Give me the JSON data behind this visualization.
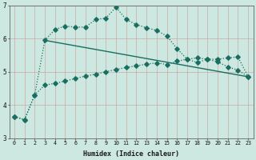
{
  "xlabel": "Humidex (Indice chaleur)",
  "bg_color": "#cce8e0",
  "grid_color": "#b0c8c0",
  "line_color": "#1a6e60",
  "xlim": [
    -0.5,
    23.5
  ],
  "ylim": [
    3,
    7
  ],
  "yticks": [
    3,
    4,
    5,
    6,
    7
  ],
  "xticks": [
    0,
    1,
    2,
    3,
    4,
    5,
    6,
    7,
    8,
    9,
    10,
    11,
    12,
    13,
    14,
    15,
    16,
    17,
    18,
    19,
    20,
    21,
    22,
    23
  ],
  "line1_x": [
    0,
    1,
    2,
    3,
    4,
    5,
    6,
    7,
    8,
    9,
    10,
    11,
    12,
    13,
    14,
    15,
    16,
    17,
    18,
    19,
    20,
    21,
    22,
    23
  ],
  "line1_y": [
    3.65,
    3.55,
    4.3,
    5.95,
    6.28,
    6.38,
    6.35,
    6.35,
    6.58,
    6.62,
    6.95,
    6.58,
    6.43,
    6.33,
    6.25,
    6.08,
    5.7,
    5.38,
    5.28,
    5.38,
    5.38,
    5.42,
    5.45,
    4.85
  ],
  "line2_x": [
    0,
    1,
    2,
    3,
    4,
    5,
    6,
    7,
    8,
    9,
    10,
    11,
    12,
    13,
    14,
    15,
    16,
    17,
    18,
    19,
    20,
    21,
    22,
    23
  ],
  "line2_y": [
    3.65,
    3.55,
    4.3,
    4.6,
    4.65,
    4.72,
    4.8,
    4.87,
    4.93,
    5.0,
    5.07,
    5.13,
    5.18,
    5.23,
    5.27,
    5.22,
    5.32,
    5.38,
    5.42,
    5.38,
    5.3,
    5.15,
    5.05,
    4.85
  ],
  "line3_x": [
    3,
    23
  ],
  "line3_y": [
    5.95,
    4.85
  ]
}
